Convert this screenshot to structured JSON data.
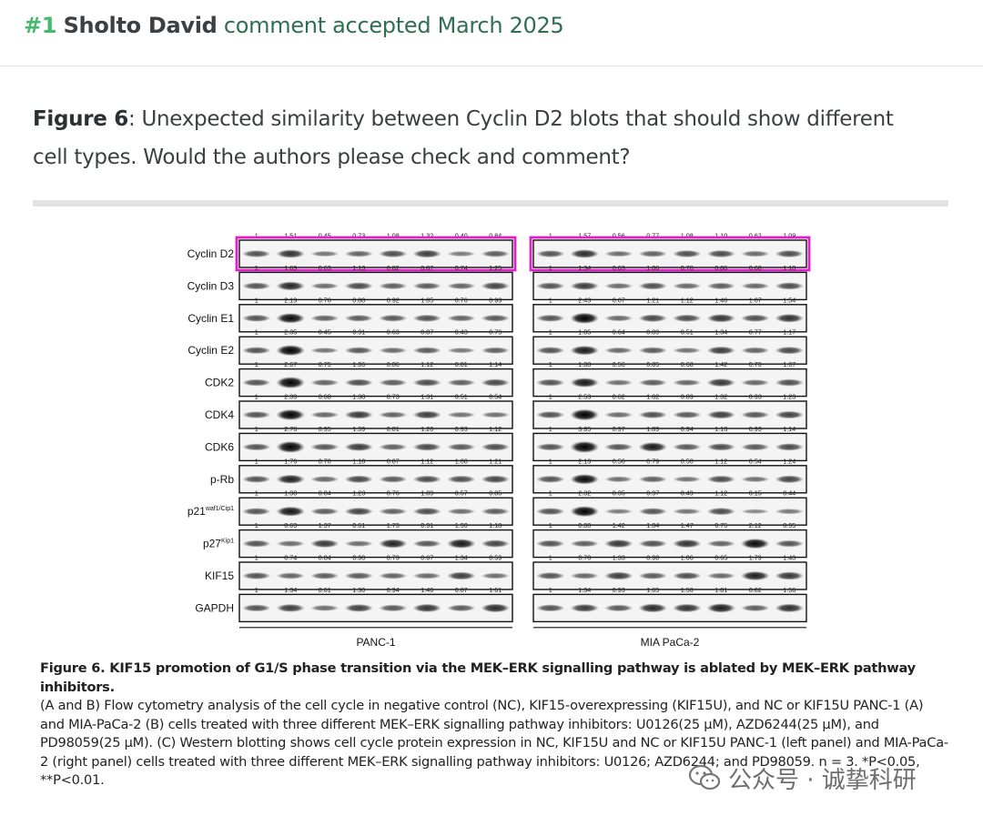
{
  "header": {
    "number": "#1",
    "author": "Sholto David",
    "status": "comment accepted March 2025"
  },
  "figure_comment": {
    "label": "Figure 6",
    "text": ": Unexpected similarity between Cyclin D2 blots that should show different cell types. Would the authors please check and comment?"
  },
  "blot": {
    "proteins": [
      {
        "name": "Cyclin D2",
        "sup": ""
      },
      {
        "name": "Cyclin D3",
        "sup": ""
      },
      {
        "name": "Cyclin E1",
        "sup": ""
      },
      {
        "name": "Cyclin E2",
        "sup": ""
      },
      {
        "name": "CDK2",
        "sup": ""
      },
      {
        "name": "CDK4",
        "sup": ""
      },
      {
        "name": "CDK6",
        "sup": ""
      },
      {
        "name": "p-Rb",
        "sup": ""
      },
      {
        "name": "p21",
        "sup": "waf1/Cip1"
      },
      {
        "name": "p27",
        "sup": "Kip1"
      },
      {
        "name": "KIF15",
        "sup": ""
      },
      {
        "name": "GAPDH",
        "sup": ""
      }
    ],
    "panels": [
      {
        "label": "PANC-1",
        "values": [
          [
            "1",
            "1.51",
            "0.45",
            "0.73",
            "1.08",
            "1.32",
            "0.40",
            "0.84"
          ],
          [
            "1",
            "1.69",
            "0.63",
            "1.13",
            "0.82",
            "0.87",
            "0.74",
            "1.25"
          ],
          [
            "1",
            "2.13",
            "0.76",
            "0.88",
            "0.92",
            "1.05",
            "0.76",
            "0.93"
          ],
          [
            "1",
            "2.35",
            "0.45",
            "0.91",
            "0.63",
            "0.87",
            "0.43",
            "0.79"
          ],
          [
            "1",
            "2.67",
            "0.75",
            "1.06",
            "0.86",
            "1.12",
            "0.81",
            "1.14"
          ],
          [
            "1",
            "2.39",
            "0.68",
            "1.38",
            "0.73",
            "1.31",
            "0.51",
            "0.54"
          ],
          [
            "1",
            "2.76",
            "0.95",
            "1.39",
            "0.81",
            "1.20",
            "0.93",
            "1.12"
          ],
          [
            "1",
            "1.76",
            "0.70",
            "1.18",
            "0.87",
            "1.12",
            "1.08",
            "1.21"
          ],
          [
            "1",
            "1.98",
            "0.84",
            "1.23",
            "0.76",
            "1.09",
            "0.57",
            "0.85"
          ],
          [
            "1",
            "0.63",
            "1.37",
            "0.61",
            "1.73",
            "0.91",
            "1.90",
            "1.18"
          ],
          [
            "1",
            "0.74",
            "0.84",
            "0.90",
            "0.73",
            "0.67",
            "1.34",
            "0.59"
          ],
          [
            "1",
            "1.34",
            "0.61",
            "1.30",
            "0.94",
            "1.46",
            "0.87",
            "1.61"
          ]
        ]
      },
      {
        "label": "MIA PaCa-2",
        "values": [
          [
            "1",
            "1.57",
            "0.56",
            "0.77",
            "1.08",
            "1.10",
            "0.62",
            "1.09"
          ],
          [
            "1",
            "1.34",
            "0.63",
            "1.06",
            "0.70",
            "0.86",
            "0.68",
            "1.10"
          ],
          [
            "1",
            "2.43",
            "0.67",
            "1.21",
            "1.12",
            "1.46",
            "1.07",
            "1.54"
          ],
          [
            "1",
            "1.85",
            "0.64",
            "0.89",
            "0.51",
            "1.34",
            "0.77",
            "1.17"
          ],
          [
            "1",
            "1.88",
            "0.56",
            "0.85",
            "0.68",
            "1.42",
            "0.70",
            "1.07"
          ],
          [
            "1",
            "2.53",
            "0.62",
            "1.02",
            "0.89",
            "1.32",
            "0.93",
            "1.23"
          ],
          [
            "1",
            "3.95",
            "0.97",
            "1.89",
            "0.94",
            "1.13",
            "0.93",
            "1.14"
          ],
          [
            "1",
            "2.13",
            "0.56",
            "0.79",
            "0.50",
            "1.12",
            "0.54",
            "1.24"
          ],
          [
            "1",
            "2.32",
            "0.35",
            "0.97",
            "0.49",
            "1.12",
            "0.15",
            "0.44"
          ],
          [
            "1",
            "0.80",
            "1.42",
            "1.04",
            "1.47",
            "0.75",
            "2.12",
            "0.95"
          ],
          [
            "1",
            "0.70",
            "1.33",
            "0.90",
            "1.06",
            "0.65",
            "1.79",
            "1.43"
          ],
          [
            "1",
            "1.34",
            "0.93",
            "1.65",
            "1.50",
            "1.81",
            "0.82",
            "1.56"
          ]
        ]
      }
    ],
    "highlight_color": "#e020c8",
    "highlighted_protein": "Cyclin D2"
  },
  "caption": {
    "title": "Figure 6. KIF15 promotion of G1/S phase transition via the MEK–ERK signalling pathway is ablated by MEK–ERK pathway inhibitors.",
    "text": "(A and B) Flow cytometry analysis of the cell cycle in negative control (NC), KIF15-overexpressing (KIF15U), and NC or KIF15U PANC-1 (A) and MIA-PaCa-2 (B) cells treated with three different MEK–ERK signalling pathway inhibitors: U0126(25 µM), AZD6244(25 µM), and PD98059(25 µM). (C) Western blotting shows cell cycle protein expression in NC, KIF15U and NC or KIF15U PANC-1 (left panel) and MIA-PaCa-2 (right panel) cells treated with three different MEK–ERK signalling pathway inhibitors: U0126; AZD6244; and PD98059. n = 3. *P<0.05, **P<0.01."
  },
  "watermark": {
    "icon": "wechat-icon",
    "text": "公众号 · 诚挚科研"
  }
}
